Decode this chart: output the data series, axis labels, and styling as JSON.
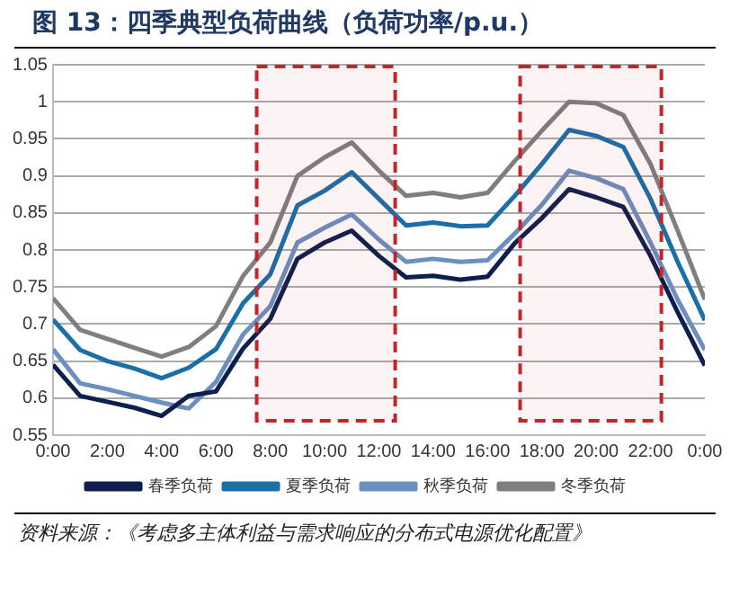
{
  "chart_data": {
    "type": "line",
    "title": "图 13：四季典型负荷曲线（负荷功率/p.u.）",
    "x": [
      0,
      1,
      2,
      3,
      4,
      5,
      6,
      7,
      8,
      9,
      10,
      11,
      12,
      13,
      14,
      15,
      16,
      17,
      18,
      19,
      20,
      21,
      22,
      23,
      24
    ],
    "series": [
      {
        "name": "春季负荷",
        "color": "#0d1f4f",
        "values": [
          0.645,
          0.603,
          0.595,
          0.587,
          0.576,
          0.603,
          0.609,
          0.667,
          0.707,
          0.788,
          0.81,
          0.826,
          0.792,
          0.763,
          0.765,
          0.76,
          0.764,
          0.809,
          0.843,
          0.882,
          0.871,
          0.858,
          0.792,
          0.716,
          0.644
        ]
      },
      {
        "name": "夏季负荷",
        "color": "#1a6fa8",
        "values": [
          0.706,
          0.665,
          0.65,
          0.64,
          0.627,
          0.641,
          0.666,
          0.728,
          0.767,
          0.86,
          0.88,
          0.905,
          0.869,
          0.833,
          0.837,
          0.832,
          0.833,
          0.873,
          0.916,
          0.962,
          0.954,
          0.939,
          0.869,
          0.784,
          0.705
        ]
      },
      {
        "name": "秋季负荷",
        "color": "#6b8fbf",
        "values": [
          0.666,
          0.62,
          0.612,
          0.603,
          0.594,
          0.586,
          0.622,
          0.686,
          0.724,
          0.81,
          0.83,
          0.848,
          0.814,
          0.784,
          0.788,
          0.784,
          0.786,
          0.822,
          0.861,
          0.907,
          0.897,
          0.882,
          0.81,
          0.733,
          0.665
        ]
      },
      {
        "name": "冬季负荷",
        "color": "#7f7f7f",
        "values": [
          0.735,
          0.692,
          0.68,
          0.668,
          0.656,
          0.669,
          0.697,
          0.765,
          0.81,
          0.9,
          0.925,
          0.945,
          0.907,
          0.873,
          0.877,
          0.871,
          0.877,
          0.92,
          0.961,
          1.0,
          0.998,
          0.982,
          0.916,
          0.826,
          0.733
        ]
      }
    ],
    "xlim": [
      0,
      24
    ],
    "xticks": [
      {
        "value": 0,
        "label": "0:00"
      },
      {
        "value": 2,
        "label": "2:00"
      },
      {
        "value": 4,
        "label": "4:00"
      },
      {
        "value": 6,
        "label": "6:00"
      },
      {
        "value": 8,
        "label": "8:00"
      },
      {
        "value": 10,
        "label": "10:00"
      },
      {
        "value": 12,
        "label": "12:00"
      },
      {
        "value": 14,
        "label": "14:00"
      },
      {
        "value": 16,
        "label": "16:00"
      },
      {
        "value": 18,
        "label": "18:00"
      },
      {
        "value": 20,
        "label": "20:00"
      },
      {
        "value": 22,
        "label": "22:00"
      },
      {
        "value": 24,
        "label": "0:00"
      }
    ],
    "ylim": [
      0.55,
      1.05
    ],
    "yticks": [
      0.55,
      0.6,
      0.65,
      0.7,
      0.75,
      0.8,
      0.85,
      0.9,
      0.95,
      1,
      1.05
    ],
    "bands": [
      {
        "axis": "x",
        "from": 7.5,
        "to": 12.6,
        "color": "#c0272d"
      },
      {
        "axis": "x",
        "from": 17.2,
        "to": 22.4,
        "color": "#c0272d"
      }
    ],
    "grid": "y",
    "legend": "bottom",
    "marker": "none",
    "line_style": "solid",
    "annotations": [
      "资料来源：《考虑多主体利益与需求响应的分布式电源优化配置》"
    ]
  }
}
